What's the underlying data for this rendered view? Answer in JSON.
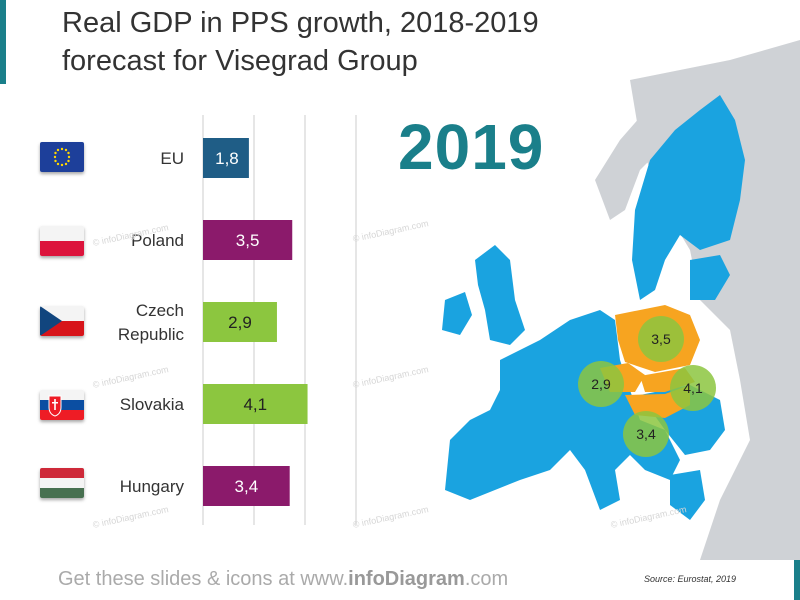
{
  "title": {
    "line1": "Real GDP in PPS growth, 2018-2019",
    "line2": "forecast for Visegrad Group"
  },
  "year_label": "2019",
  "colors": {
    "eu_bar": "#1f5d86",
    "purple": "#8b1a6b",
    "green": "#8cc63f",
    "map_blue": "#1aa3e0",
    "map_orange": "#f7a420",
    "map_gray": "#cfd2d6",
    "accent": "#1a7f8a"
  },
  "chart_data": {
    "type": "bar",
    "orientation": "horizontal",
    "categories": [
      "EU",
      "Poland",
      "Czech Republic",
      "Slovakia",
      "Hungary"
    ],
    "category_lines": [
      [
        "EU"
      ],
      [
        "Poland"
      ],
      [
        "Czech",
        "Republic"
      ],
      [
        "Slovakia"
      ],
      [
        "Hungary"
      ]
    ],
    "values": [
      1.8,
      3.5,
      2.9,
      4.1,
      3.4
    ],
    "value_labels": [
      "1,8",
      "3,5",
      "2,9",
      "4,1",
      "3,4"
    ],
    "bar_colors": [
      "#1f5d86",
      "#8b1a6b",
      "#8cc63f",
      "#8cc63f",
      "#8b1a6b"
    ],
    "xlim": [
      0,
      6
    ],
    "grid": true,
    "title": "Real GDP in PPS growth, 2018-2019 forecast for Visegrad Group"
  },
  "map_bubbles": [
    {
      "country": "Poland",
      "label": "3,5"
    },
    {
      "country": "Czech Republic",
      "label": "2,9"
    },
    {
      "country": "Slovakia",
      "label": "4,1"
    },
    {
      "country": "Hungary",
      "label": "3,4"
    }
  ],
  "flags": [
    {
      "country": "EU",
      "icon": "eu-flag-icon"
    },
    {
      "country": "Poland",
      "icon": "poland-flag-icon"
    },
    {
      "country": "Czech Republic",
      "icon": "czech-flag-icon"
    },
    {
      "country": "Slovakia",
      "icon": "slovakia-flag-icon"
    },
    {
      "country": "Hungary",
      "icon": "hungary-flag-icon"
    }
  ],
  "watermark": "© infoDiagram.com",
  "footer": {
    "text": "Get these slides & icons at www.",
    "brand": "infoDiagram",
    "suffix": ".com"
  },
  "source": "Source: Eurostat, 2019"
}
